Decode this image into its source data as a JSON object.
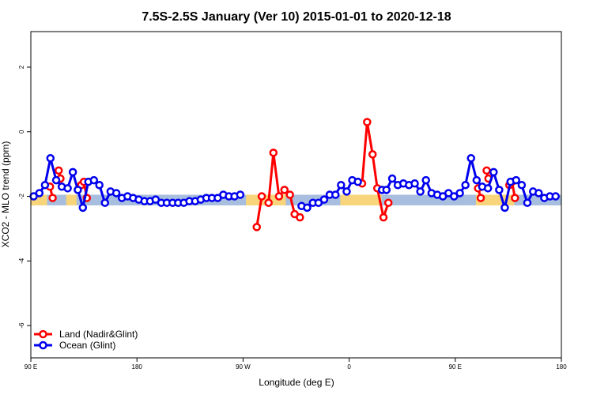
{
  "chart_data": {
    "type": "line",
    "title": "7.5S-2.5S January (Ver 10)   2015-01-01 to 2020-12-18",
    "xlabel": "Longitude (deg E)",
    "ylabel": "XCO2 - MLO trend (ppm)",
    "xlim": [
      90,
      450
    ],
    "ylim": [
      -7,
      3.1
    ],
    "x_ticks": [
      {
        "value": 90,
        "label": "90 E"
      },
      {
        "value": 162,
        "label": "180"
      },
      {
        "value": 234,
        "label": "90 W"
      },
      {
        "value": 306,
        "label": "0"
      },
      {
        "value": 378,
        "label": "90 E"
      },
      {
        "value": 450,
        "label": "180"
      }
    ],
    "y_ticks": [
      {
        "value": 2,
        "label": "2"
      },
      {
        "value": 0,
        "label": "0"
      },
      {
        "value": -2,
        "label": "-2"
      },
      {
        "value": -4,
        "label": "-4"
      },
      {
        "value": -6,
        "label": "-6"
      }
    ],
    "band": {
      "y_low": -2.28,
      "y_high": -1.95,
      "ocean_color": "#a8bede",
      "land_color": "#f8d57a"
    },
    "land_band_ranges": [
      [
        90,
        101
      ],
      [
        114,
        121
      ],
      [
        236,
        263
      ],
      [
        300,
        328
      ],
      [
        392,
        418
      ]
    ],
    "series": [
      {
        "name": "Land (Nadir&Glint)",
        "color": "#ff0000",
        "segments": [
          [
            [
              103.0,
              -1.7
            ],
            [
              104.8,
              -2.05
            ]
          ],
          [
            [
              108.9,
              -1.2
            ],
            [
              110.1,
              -1.45
            ]
          ],
          [
            [
              124.2,
              -1.65
            ],
            [
              126.0,
              -1.55
            ],
            [
              128.0,
              -2.05
            ]
          ],
          [
            [
              243.3,
              -2.95
            ],
            [
              246.7,
              -2.0
            ]
          ],
          [
            [
              251.3,
              -2.2
            ],
            [
              254.6,
              -0.65
            ],
            [
              258.4,
              -2.0
            ],
            [
              262.1,
              -1.8
            ],
            [
              265.8,
              -1.95
            ],
            [
              269.0,
              -2.55
            ],
            [
              272.6,
              -2.65
            ]
          ],
          [
            [
              314.8,
              -1.6
            ],
            [
              318.2,
              0.3
            ],
            [
              321.9,
              -0.7
            ],
            [
              325.1,
              -1.75
            ],
            [
              329.3,
              -2.65
            ],
            [
              332.6,
              -2.2
            ]
          ],
          [
            [
              393.5,
              -1.75
            ],
            [
              395.3,
              -2.05
            ]
          ],
          [
            [
              399.3,
              -1.2
            ],
            [
              400.5,
              -1.45
            ]
          ],
          [
            [
              414.7,
              -1.65
            ],
            [
              416.5,
              -1.55
            ],
            [
              418.5,
              -2.05
            ]
          ]
        ]
      },
      {
        "name": "Ocean (Glint)",
        "color": "#0000ee",
        "segments": [
          [
            [
              91.9,
              -2.0
            ],
            [
              95.8,
              -1.9
            ],
            [
              99.6,
              -1.65
            ],
            [
              103.3,
              -0.82
            ],
            [
              107.2,
              -1.5
            ],
            [
              111.0,
              -1.7
            ],
            [
              115.0,
              -1.75
            ],
            [
              118.5,
              -1.25
            ],
            [
              121.9,
              -1.8
            ],
            [
              125.3,
              -2.35
            ],
            [
              129.0,
              -1.55
            ],
            [
              132.8,
              -1.5
            ],
            [
              136.5,
              -1.65
            ],
            [
              140.3,
              -2.2
            ],
            [
              144.1,
              -1.85
            ],
            [
              148.0,
              -1.9
            ],
            [
              151.8,
              -2.05
            ],
            [
              155.6,
              -2.0
            ],
            [
              159.4,
              -2.05
            ],
            [
              163.2,
              -2.1
            ],
            [
              167.1,
              -2.15
            ],
            [
              170.9,
              -2.15
            ],
            [
              174.7,
              -2.1
            ],
            [
              178.5,
              -2.2
            ],
            [
              182.3,
              -2.2
            ],
            [
              186.2,
              -2.2
            ],
            [
              190.0,
              -2.2
            ],
            [
              193.8,
              -2.2
            ],
            [
              197.6,
              -2.15
            ],
            [
              201.5,
              -2.15
            ],
            [
              205.3,
              -2.1
            ],
            [
              209.1,
              -2.05
            ],
            [
              212.9,
              -2.05
            ],
            [
              216.8,
              -2.05
            ],
            [
              220.6,
              -1.95
            ],
            [
              224.4,
              -2.0
            ],
            [
              228.2,
              -2.0
            ],
            [
              232.1,
              -1.95
            ]
          ],
          [
            [
              273.7,
              -2.3
            ],
            [
              277.5,
              -2.35
            ],
            [
              281.4,
              -2.2
            ],
            [
              285.2,
              -2.2
            ],
            [
              289.0,
              -2.1
            ],
            [
              292.8,
              -1.95
            ],
            [
              296.7,
              -1.95
            ],
            [
              300.5,
              -1.65
            ],
            [
              304.3,
              -1.85
            ],
            [
              308.1,
              -1.5
            ],
            [
              311.9,
              -1.55
            ]
          ],
          [
            [
              328.3,
              -1.8
            ],
            [
              331.3,
              -1.8
            ],
            [
              335.2,
              -1.45
            ],
            [
              339.0,
              -1.65
            ],
            [
              342.8,
              -1.6
            ],
            [
              346.6,
              -1.65
            ],
            [
              350.5,
              -1.6
            ],
            [
              354.3,
              -1.85
            ],
            [
              358.1,
              -1.5
            ],
            [
              361.9,
              -1.9
            ],
            [
              365.8,
              -1.95
            ],
            [
              369.6,
              -2.0
            ],
            [
              373.4,
              -1.9
            ],
            [
              377.2,
              -2.0
            ],
            [
              381.1,
              -1.9
            ],
            [
              384.9,
              -1.65
            ],
            [
              388.7,
              -0.82
            ],
            [
              392.5,
              -1.5
            ],
            [
              396.3,
              -1.7
            ],
            [
              400.2,
              -1.75
            ],
            [
              404.0,
              -1.25
            ],
            [
              407.8,
              -1.8
            ],
            [
              411.6,
              -2.35
            ],
            [
              415.5,
              -1.55
            ],
            [
              419.3,
              -1.5
            ],
            [
              423.1,
              -1.65
            ],
            [
              426.9,
              -2.2
            ],
            [
              430.8,
              -1.85
            ],
            [
              434.6,
              -1.9
            ],
            [
              438.4,
              -2.05
            ],
            [
              442.2,
              -2.0
            ],
            [
              446.1,
              -2.0
            ]
          ]
        ]
      }
    ],
    "legend_position": "bottom-left"
  }
}
